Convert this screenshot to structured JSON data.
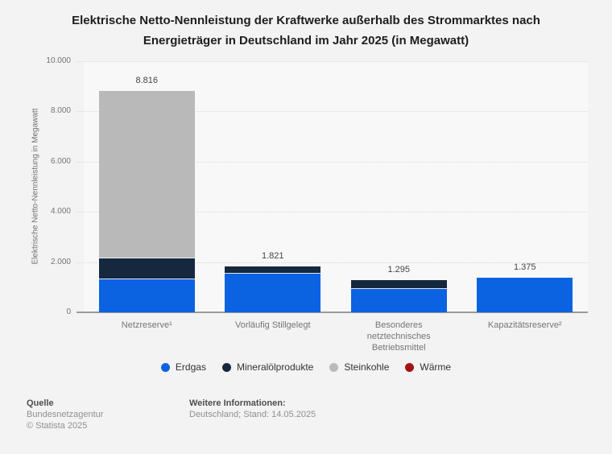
{
  "header": {
    "title_line1": "Elektrische Netto-Nennleistung der Kraftwerke außerhalb des Strommarktes nach",
    "title_line2": "Energieträger in Deutschland im Jahr 2025 (in Megawatt)"
  },
  "chart_data": {
    "type": "bar",
    "stacked": true,
    "title": "Elektrische Netto-Nennleistung der Kraftwerke außerhalb des Strommarktes nach Energieträger in Deutschland im Jahr 2025 (in Megawatt)",
    "categories": [
      "Netzreserve¹",
      "Vorläufig Stillgelegt",
      "Besonderes netztechnisches Betriebsmittel",
      "Kapazitätsreserve²"
    ],
    "series": [
      {
        "name": "Erdgas",
        "color": "#0b63e2",
        "values": [
          1300,
          1530,
          945,
          1375
        ]
      },
      {
        "name": "Mineralölprodukte",
        "color": "#16283e",
        "values": [
          850,
          291,
          350,
          0
        ]
      },
      {
        "name": "Steinkohle",
        "color": "#b9b9b9",
        "values": [
          6666,
          0,
          0,
          0
        ]
      },
      {
        "name": "Wärme",
        "color": "#a21318",
        "values": [
          0,
          0,
          0,
          0
        ]
      }
    ],
    "totals": [
      8816,
      1821,
      1295,
      1375
    ],
    "total_labels": [
      "8.816",
      "1.821",
      "1.295",
      "1.375"
    ],
    "ylabel": "Elektrische Netto-Nennleistung in Megawatt",
    "xlabel": "",
    "ylim": [
      0,
      10000
    ],
    "ytick_step": 2000,
    "ytick_labels": [
      "0",
      "2.000",
      "4.000",
      "6.000",
      "8.000",
      "10.000"
    ],
    "grid": true,
    "legend_position": "bottom"
  },
  "footer": {
    "source_label": "Quelle",
    "source_name": "Bundesnetzagentur",
    "copyright": "© Statista 2025",
    "info_label": "Weitere Informationen:",
    "info_value": "Deutschland; Stand: 14.05.2025"
  }
}
